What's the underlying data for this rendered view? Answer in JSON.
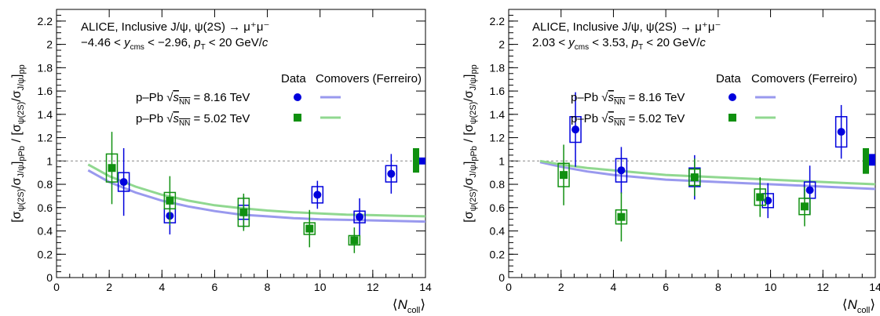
{
  "colors": {
    "pPb_8p16": "#0000dd",
    "pPb_5p02": "#109010",
    "model_8p16": "#9999ee",
    "model_5p02": "#90d890",
    "reference_line": "#888888"
  },
  "chart_data": [
    {
      "type": "scatter",
      "panel": "backward",
      "title": "ALICE, Inclusive J/ψ, ψ(2S) → μ⁺μ⁻",
      "subtitle": "−4.46 < y_cms < −2.96, p_T < 20 GeV/c",
      "xlabel": "⟨N_coll⟩",
      "ylabel": "[σ_ψ(2S)/σ_J/ψ]_pPb / [σ_ψ(2S)/σ_J/ψ]_pp",
      "xlim": [
        0,
        14
      ],
      "ylim": [
        0,
        2.3
      ],
      "xticks": [
        "0",
        "2",
        "4",
        "6",
        "8",
        "10",
        "12",
        "14"
      ],
      "yticks": [
        "0",
        "0.2",
        "0.4",
        "0.6",
        "0.8",
        "1",
        "1.2",
        "1.4",
        "1.6",
        "1.8",
        "2",
        "2.2"
      ],
      "legend_header": [
        "Data",
        "Comovers (Ferreiro)"
      ],
      "legend": [
        "p–Pb √sNN = 8.16 TeV",
        "p–Pb √sNN = 5.02 TeV"
      ],
      "reference_line": 1.0,
      "series": [
        {
          "name": "p–Pb √sNN = 8.16 TeV",
          "marker": "circle",
          "points": [
            {
              "x": 2.55,
              "y": 0.82,
              "stat": 0.29,
              "sys": 0.08
            },
            {
              "x": 4.3,
              "y": 0.53,
              "stat": 0.16,
              "sys": 0.06
            },
            {
              "x": 7.1,
              "y": 0.56,
              "stat": 0.14,
              "sys": 0.06
            },
            {
              "x": 9.9,
              "y": 0.71,
              "stat": 0.12,
              "sys": 0.07
            },
            {
              "x": 11.5,
              "y": 0.52,
              "stat": 0.16,
              "sys": 0.05
            },
            {
              "x": 12.7,
              "y": 0.89,
              "stat": 0.17,
              "sys": 0.07
            }
          ],
          "global_uncertainty": [
            0.97,
            1.03
          ]
        },
        {
          "name": "p–Pb √sNN = 5.02 TeV",
          "marker": "square",
          "points": [
            {
              "x": 2.1,
              "y": 0.94,
              "stat": 0.31,
              "sys": 0.12
            },
            {
              "x": 4.3,
              "y": 0.66,
              "stat": 0.21,
              "sys": 0.07
            },
            {
              "x": 7.1,
              "y": 0.56,
              "stat": 0.16,
              "sys": 0.12
            },
            {
              "x": 9.6,
              "y": 0.42,
              "stat": 0.16,
              "sys": 0.05
            },
            {
              "x": 11.3,
              "y": 0.32,
              "stat": 0.11,
              "sys": 0.04
            },
            {
              "x": null,
              "y": null,
              "stat": null,
              "sys": null
            }
          ],
          "global_uncertainty": [
            0.9,
            1.11
          ]
        }
      ],
      "model_curves": [
        {
          "name": "Comovers (Ferreiro) 8.16 TeV",
          "x": [
            1.2,
            2,
            3,
            4,
            5,
            6,
            7,
            8,
            9,
            10,
            11,
            12,
            13,
            14
          ],
          "y": [
            0.92,
            0.82,
            0.73,
            0.66,
            0.61,
            0.57,
            0.54,
            0.525,
            0.51,
            0.5,
            0.495,
            0.49,
            0.485,
            0.48
          ]
        },
        {
          "name": "Comovers (Ferreiro) 5.02 TeV",
          "x": [
            1.2,
            2,
            3,
            4,
            5,
            6,
            7,
            8,
            9,
            10,
            11,
            12,
            13,
            14
          ],
          "y": [
            0.97,
            0.87,
            0.78,
            0.71,
            0.66,
            0.62,
            0.595,
            0.575,
            0.56,
            0.55,
            0.54,
            0.535,
            0.53,
            0.525
          ]
        }
      ]
    },
    {
      "type": "scatter",
      "panel": "forward",
      "title": "ALICE, Inclusive J/ψ, ψ(2S) → μ⁺μ⁻",
      "subtitle": "2.03 < y_cms < 3.53, p_T < 20 GeV/c",
      "xlabel": "⟨N_coll⟩",
      "ylabel": "[σ_ψ(2S)/σ_J/ψ]_pPb / [σ_ψ(2S)/σ_J/ψ]_pp",
      "xlim": [
        0,
        14
      ],
      "ylim": [
        0,
        2.3
      ],
      "xticks": [
        "0",
        "2",
        "4",
        "6",
        "8",
        "10",
        "12",
        "14"
      ],
      "yticks": [
        "0",
        "0.2",
        "0.4",
        "0.6",
        "0.8",
        "1",
        "1.2",
        "1.4",
        "1.6",
        "1.8",
        "2",
        "2.2"
      ],
      "legend_header": [
        "Data",
        "Comovers (Ferreiro)"
      ],
      "legend": [
        "p–Pb √sNN = 8.16 TeV",
        "p–Pb √sNN = 5.02 TeV"
      ],
      "reference_line": 1.0,
      "series": [
        {
          "name": "p–Pb √sNN = 8.16 TeV",
          "marker": "circle",
          "points": [
            {
              "x": 2.55,
              "y": 1.27,
              "stat": 0.32,
              "sys": 0.11
            },
            {
              "x": 4.3,
              "y": 0.92,
              "stat": 0.2,
              "sys": 0.1
            },
            {
              "x": 7.1,
              "y": 0.86,
              "stat": 0.19,
              "sys": 0.08
            },
            {
              "x": 9.9,
              "y": 0.66,
              "stat": 0.15,
              "sys": 0.06
            },
            {
              "x": 11.5,
              "y": 0.75,
              "stat": 0.21,
              "sys": 0.07
            },
            {
              "x": 12.7,
              "y": 1.25,
              "stat": 0.23,
              "sys": 0.13
            }
          ],
          "global_uncertainty": [
            0.96,
            1.06
          ]
        },
        {
          "name": "p–Pb √sNN = 5.02 TeV",
          "marker": "square",
          "points": [
            {
              "x": 2.1,
              "y": 0.88,
              "stat": 0.26,
              "sys": 0.1
            },
            {
              "x": 4.3,
              "y": 0.52,
              "stat": 0.21,
              "sys": 0.06
            },
            {
              "x": 7.1,
              "y": 0.86,
              "stat": 0.16,
              "sys": 0.07
            },
            {
              "x": 9.6,
              "y": 0.69,
              "stat": 0.17,
              "sys": 0.07
            },
            {
              "x": 11.3,
              "y": 0.61,
              "stat": 0.17,
              "sys": 0.07
            },
            {
              "x": null,
              "y": null,
              "stat": null,
              "sys": null
            }
          ],
          "global_uncertainty": [
            0.89,
            1.11
          ]
        }
      ],
      "model_curves": [
        {
          "name": "Comovers (Ferreiro) 8.16 TeV",
          "x": [
            1.2,
            2,
            3,
            4,
            5,
            6,
            7,
            8,
            9,
            10,
            11,
            12,
            13,
            14
          ],
          "y": [
            0.99,
            0.95,
            0.91,
            0.88,
            0.86,
            0.84,
            0.83,
            0.82,
            0.81,
            0.8,
            0.79,
            0.78,
            0.77,
            0.76
          ]
        },
        {
          "name": "Comovers (Ferreiro) 5.02 TeV",
          "x": [
            1.2,
            2,
            3,
            4,
            5,
            6,
            7,
            8,
            9,
            10,
            11,
            12,
            13,
            14
          ],
          "y": [
            1.0,
            0.97,
            0.94,
            0.92,
            0.9,
            0.88,
            0.87,
            0.86,
            0.85,
            0.84,
            0.83,
            0.82,
            0.81,
            0.8
          ]
        }
      ]
    }
  ]
}
